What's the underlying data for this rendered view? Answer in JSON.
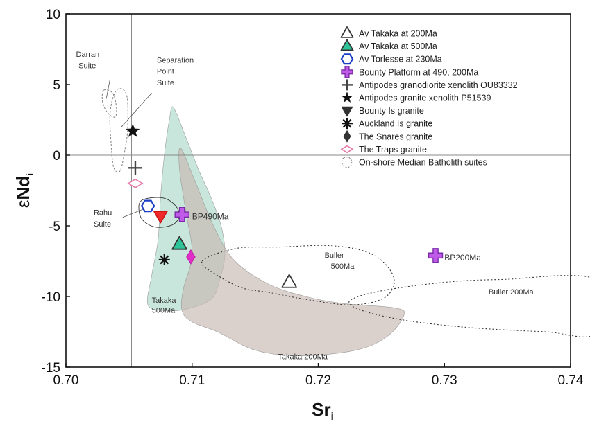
{
  "chart_data": {
    "type": "scatter",
    "title": "",
    "xlabel": "Sr",
    "xlabel_sub": "i",
    "ylabel_prefix": "ε",
    "ylabel_main": "Nd",
    "ylabel_sub": "i",
    "xlim": [
      0.7,
      0.74
    ],
    "ylim": [
      -15,
      10
    ],
    "x_ticks": [
      0.7,
      0.71,
      0.72,
      0.73,
      0.74
    ],
    "x_tick_labels": [
      "0.70",
      "0.71",
      "0.72",
      "0.73",
      "0.74"
    ],
    "y_ticks": [
      10,
      5,
      0,
      -5,
      -10,
      -15
    ],
    "y_tick_labels": [
      "10",
      "5",
      "0",
      "-5",
      "-10",
      "-15"
    ],
    "reference_lines": {
      "x": 0.7052,
      "y": 0
    },
    "legend_position": "top-right",
    "legend": [
      {
        "label": "Av Takaka at 200Ma",
        "marker": "triangle-up",
        "fill": "#ffffff",
        "stroke": "#333333"
      },
      {
        "label": "Av Takaka at 500Ma",
        "marker": "triangle-up",
        "fill": "#2ec49a",
        "stroke": "#333333"
      },
      {
        "label": "Av Torlesse at 230Ma",
        "marker": "hexagon",
        "fill": "#ffffff",
        "stroke": "#1a3fc4"
      },
      {
        "label": "Bounty Platform at 490, 200Ma",
        "marker": "thick-plus",
        "fill": "#c05ae8",
        "stroke": "#7a2ba8"
      },
      {
        "label": "Antipodes granodiorite xenolith OU83332",
        "marker": "thin-plus",
        "fill": "#444444",
        "stroke": "#444444"
      },
      {
        "label": "Antipodes granite xenolith P51539",
        "marker": "star",
        "fill": "#111111",
        "stroke": "#111111"
      },
      {
        "label": "Bounty Is granite",
        "marker": "triangle-down",
        "fill": "#333333",
        "stroke": "#333333"
      },
      {
        "label": "Auckland Is granite",
        "marker": "asterisk",
        "fill": "#111111",
        "stroke": "#111111"
      },
      {
        "label": "The Snares granite",
        "marker": "diamond",
        "fill": "#333333",
        "stroke": "#333333"
      },
      {
        "label": "The Traps granite",
        "marker": "diamond-wide",
        "fill": "#ffffff",
        "stroke": "#e87aa8"
      },
      {
        "label": "On-shore Median Batholith suites",
        "marker": "dashed-outline",
        "fill": "none",
        "stroke": "#777777"
      }
    ],
    "points": [
      {
        "name": "Av Takaka at 200Ma",
        "x": 0.7177,
        "y": -9.0,
        "marker": "triangle-up",
        "fill": "#ffffff",
        "stroke": "#333333",
        "size": 11
      },
      {
        "name": "Av Takaka at 500Ma",
        "x": 0.709,
        "y": -6.3,
        "marker": "triangle-up",
        "fill": "#2ec49a",
        "stroke": "#333333",
        "size": 11
      },
      {
        "name": "Av Torlesse at 230Ma",
        "x": 0.7065,
        "y": -3.6,
        "marker": "hexagon",
        "fill": "#ffffff",
        "stroke": "#1a3fc4",
        "size": 9
      },
      {
        "name": "Bounty Platform at 490Ma",
        "x": 0.7092,
        "y": -4.2,
        "marker": "thick-plus",
        "fill": "#c05ae8",
        "stroke": "#7a2ba8",
        "size": 10
      },
      {
        "name": "Bounty Platform at 200Ma",
        "x": 0.7293,
        "y": -7.1,
        "marker": "thick-plus",
        "fill": "#c05ae8",
        "stroke": "#7a2ba8",
        "size": 10
      },
      {
        "name": "Antipodes granodiorite xenolith OU83332",
        "x": 0.7055,
        "y": -0.9,
        "marker": "thin-plus",
        "fill": "#444444",
        "stroke": "#444444",
        "size": 10
      },
      {
        "name": "Antipodes granite xenolith P51539",
        "x": 0.7053,
        "y": 1.7,
        "marker": "star",
        "fill": "#111111",
        "stroke": "#111111",
        "size": 10
      },
      {
        "name": "Bounty Is granite",
        "x": 0.7075,
        "y": -4.3,
        "marker": "triangle-down",
        "fill": "#ee2a2a",
        "stroke": "#cc1111",
        "size": 10
      },
      {
        "name": "Auckland Is granite",
        "x": 0.7078,
        "y": -7.4,
        "marker": "asterisk",
        "fill": "#111111",
        "stroke": "#111111",
        "size": 8
      },
      {
        "name": "The Snares granite",
        "x": 0.7099,
        "y": -7.2,
        "marker": "diamond",
        "fill": "#e22ec9",
        "stroke": "#b81ca0",
        "size": 10
      },
      {
        "name": "The Traps granite",
        "x": 0.7055,
        "y": -2.0,
        "marker": "diamond-wide",
        "fill": "#ffffff",
        "stroke": "#e87aa8",
        "size": 10
      }
    ],
    "regions": [
      {
        "name": "Takaka 500Ma field",
        "fill": "#a3d6c4",
        "opacity": 0.6,
        "points": [
          [
            0.7085,
            3.4
          ],
          [
            0.7094,
            1.5
          ],
          [
            0.7105,
            -1.0
          ],
          [
            0.7115,
            -3.0
          ],
          [
            0.7123,
            -5.0
          ],
          [
            0.7126,
            -7.0
          ],
          [
            0.7122,
            -8.8
          ],
          [
            0.7115,
            -10.2
          ],
          [
            0.7095,
            -10.9
          ],
          [
            0.7078,
            -11.0
          ],
          [
            0.7065,
            -10.6
          ],
          [
            0.7068,
            -8.5
          ],
          [
            0.7073,
            -6.0
          ],
          [
            0.7075,
            -3.0
          ],
          [
            0.7078,
            0.0
          ],
          [
            0.7082,
            2.5
          ]
        ]
      },
      {
        "name": "Takaka 200Ma field",
        "fill": "#c7b9b1",
        "opacity": 0.65,
        "points": [
          [
            0.7091,
            0.5
          ],
          [
            0.7103,
            -2.0
          ],
          [
            0.7117,
            -5.0
          ],
          [
            0.7133,
            -7.4
          ],
          [
            0.716,
            -9.1
          ],
          [
            0.719,
            -10.0
          ],
          [
            0.722,
            -10.5
          ],
          [
            0.726,
            -10.8
          ],
          [
            0.7268,
            -11.3
          ],
          [
            0.7255,
            -12.8
          ],
          [
            0.723,
            -13.8
          ],
          [
            0.7185,
            -14.2
          ],
          [
            0.715,
            -13.8
          ],
          [
            0.712,
            -12.5
          ],
          [
            0.71,
            -11.8
          ],
          [
            0.7092,
            -11.0
          ],
          [
            0.7093,
            -9.5
          ],
          [
            0.71,
            -7.0
          ],
          [
            0.7095,
            -4.0
          ],
          [
            0.709,
            -1.0
          ]
        ]
      }
    ],
    "outlines": [
      {
        "name": "Buller 500Ma",
        "style": "dotted",
        "stroke": "#333333",
        "points": [
          [
            0.7108,
            -7.5
          ],
          [
            0.7135,
            -6.6
          ],
          [
            0.717,
            -6.5
          ],
          [
            0.721,
            -6.4
          ],
          [
            0.724,
            -6.9
          ],
          [
            0.7256,
            -8.0
          ],
          [
            0.726,
            -9.2
          ],
          [
            0.725,
            -10.2
          ],
          [
            0.7225,
            -10.6
          ],
          [
            0.719,
            -10.2
          ],
          [
            0.716,
            -9.7
          ],
          [
            0.714,
            -9.4
          ],
          [
            0.712,
            -8.5
          ]
        ]
      },
      {
        "name": "Buller 200Ma",
        "style": "dotted",
        "stroke": "#333333",
        "points": [
          [
            0.742,
            -8.8
          ],
          [
            0.7345,
            -8.8
          ],
          [
            0.73,
            -9.0
          ],
          [
            0.725,
            -9.6
          ],
          [
            0.7225,
            -10.3
          ],
          [
            0.7235,
            -11.0
          ],
          [
            0.727,
            -11.7
          ],
          [
            0.732,
            -12.2
          ],
          [
            0.738,
            -12.5
          ],
          [
            0.742,
            -12.6
          ]
        ]
      },
      {
        "name": "Rahu Suite",
        "style": "solid",
        "stroke": "#333333",
        "points": [
          [
            0.706,
            -3.2
          ],
          [
            0.7075,
            -3.0
          ],
          [
            0.7085,
            -3.4
          ],
          [
            0.709,
            -4.2
          ],
          [
            0.7085,
            -4.9
          ],
          [
            0.7072,
            -5.1
          ],
          [
            0.7062,
            -4.7
          ],
          [
            0.7058,
            -4.0
          ]
        ]
      },
      {
        "name": "Darran Suite",
        "style": "dashed",
        "stroke": "#888888",
        "points": [
          [
            0.703,
            4.6
          ],
          [
            0.7037,
            4.4
          ],
          [
            0.704,
            3.4
          ],
          [
            0.7039,
            2.7
          ],
          [
            0.7033,
            3.0
          ],
          [
            0.7029,
            3.8
          ]
        ]
      },
      {
        "name": "Separation Point Suite",
        "style": "dashed",
        "stroke": "#888888",
        "points": [
          [
            0.7035,
            3.0
          ],
          [
            0.704,
            4.6
          ],
          [
            0.7048,
            4.3
          ],
          [
            0.7049,
            2.0
          ],
          [
            0.7047,
            0.5
          ],
          [
            0.7043,
            -1.1
          ],
          [
            0.7038,
            -0.9
          ],
          [
            0.7036,
            0.6
          ]
        ]
      }
    ],
    "annotations": [
      {
        "text": "BP490Ma",
        "x": 0.71,
        "y": -4.3,
        "size": "normal"
      },
      {
        "text": "BP200Ma",
        "x": 0.73,
        "y": -7.2,
        "size": "normal"
      },
      {
        "text": "Takaka",
        "x": 0.7068,
        "y": -10.2,
        "size": "small"
      },
      {
        "text": "500Ma",
        "x": 0.7068,
        "y": -10.9,
        "size": "small"
      },
      {
        "text": "Takaka 200Ma",
        "x": 0.7168,
        "y": -14.2,
        "size": "small"
      },
      {
        "text": "Buller",
        "x": 0.7205,
        "y": -7.0,
        "size": "small"
      },
      {
        "text": "500Ma",
        "x": 0.721,
        "y": -7.8,
        "size": "small"
      },
      {
        "text": "Buller 200Ma",
        "x": 0.7335,
        "y": -9.6,
        "size": "small"
      },
      {
        "text": "Rahu",
        "x": 0.7022,
        "y": -4.0,
        "size": "small"
      },
      {
        "text": "Suite",
        "x": 0.7022,
        "y": -4.8,
        "size": "small"
      },
      {
        "text": "Darran",
        "x": 0.7008,
        "y": 7.2,
        "size": "small"
      },
      {
        "text": "Suite",
        "x": 0.701,
        "y": 6.4,
        "size": "small"
      },
      {
        "text": "Separation",
        "x": 0.7072,
        "y": 6.8,
        "size": "small"
      },
      {
        "text": "Point",
        "x": 0.7072,
        "y": 6.0,
        "size": "small"
      },
      {
        "text": "Suite",
        "x": 0.7072,
        "y": 5.2,
        "size": "small"
      }
    ],
    "leader_lines": [
      {
        "from": [
          0.7035,
          5.4
        ],
        "to": [
          0.7032,
          4.0
        ]
      },
      {
        "from": [
          0.7068,
          4.4
        ],
        "to": [
          0.7044,
          2.0
        ]
      },
      {
        "from": [
          0.7045,
          -4.4
        ],
        "to": [
          0.7062,
          -3.8
        ]
      }
    ]
  }
}
